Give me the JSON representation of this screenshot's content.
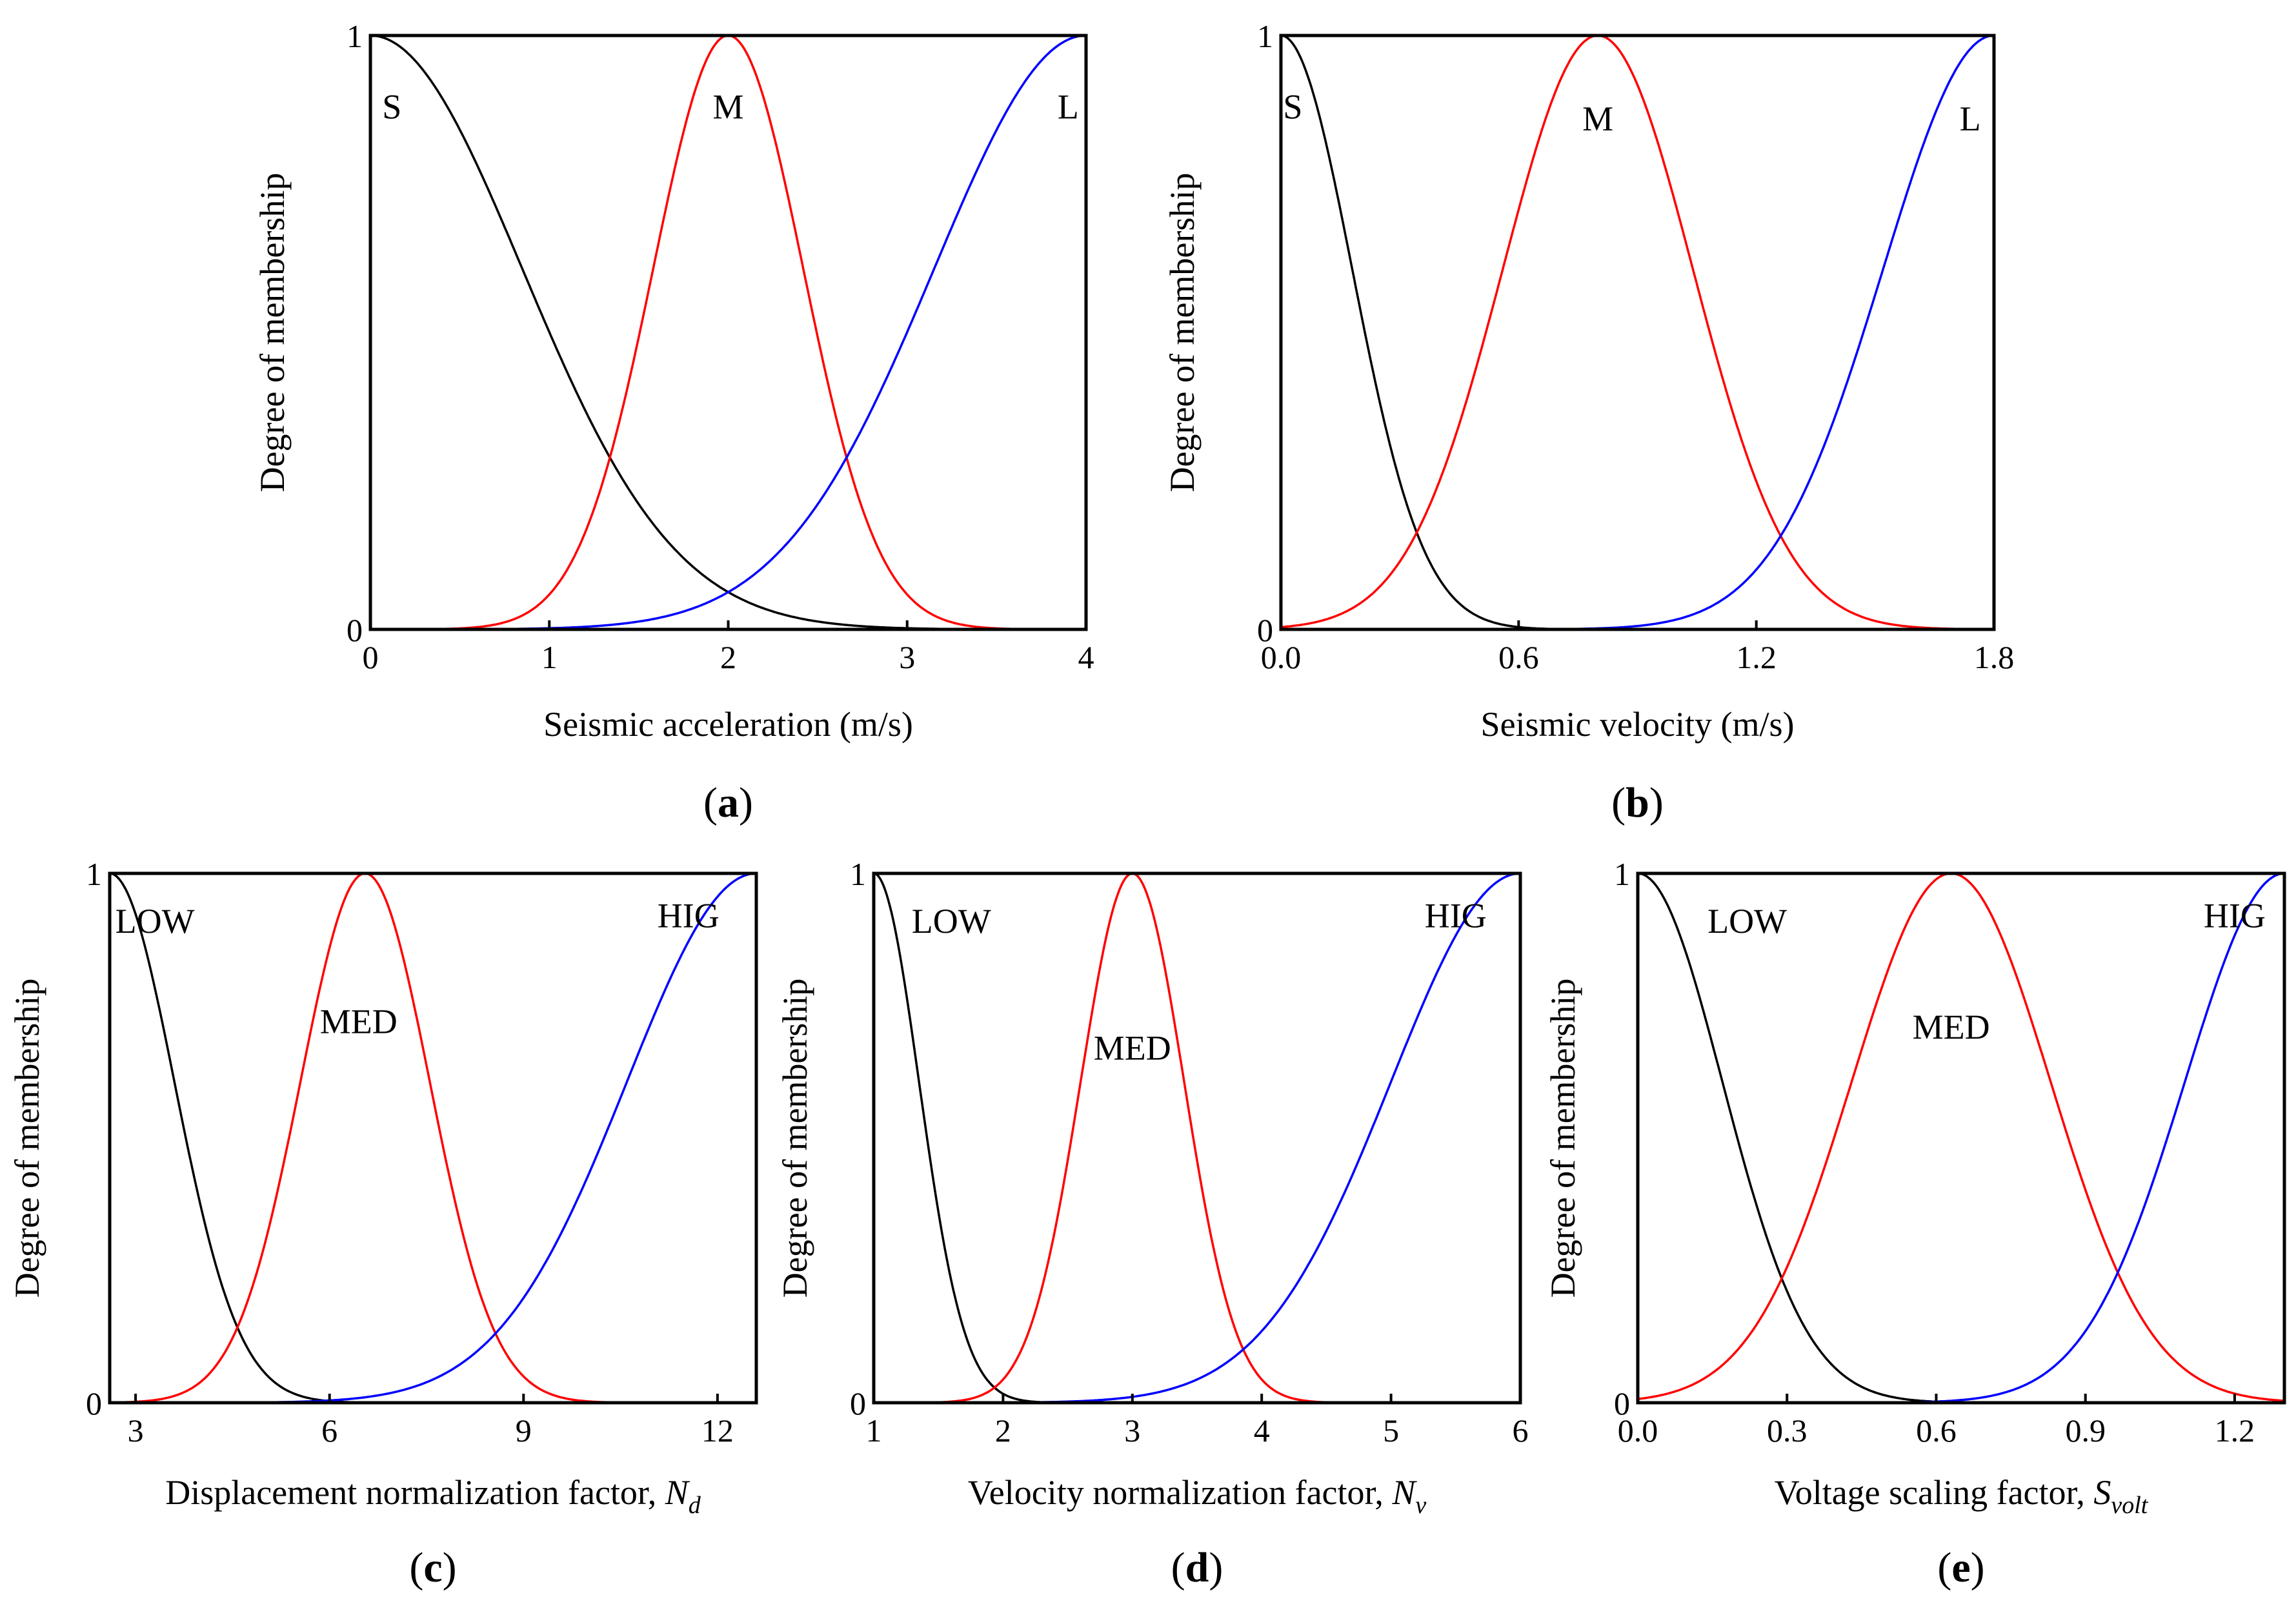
{
  "chart_data": [
    {
      "type": "line",
      "id": "a",
      "panel_label": "a",
      "xlabel": "Seismic acceleration (m/s)",
      "xlabel_symbol": "",
      "xlabel_subscript": "",
      "ylabel": "Degree of membership",
      "xlim": [
        0,
        4
      ],
      "ylim": [
        0,
        1
      ],
      "xticks": [
        0,
        1,
        2,
        3,
        4
      ],
      "xtick_labels": [
        "0",
        "1",
        "2",
        "3",
        "4"
      ],
      "yticks": [
        0,
        1
      ],
      "ytick_labels": [
        "0",
        "1"
      ],
      "series": [
        {
          "name": "S",
          "color": "#000000",
          "shape": "z",
          "mean": 0,
          "sigma": 0.85
        },
        {
          "name": "M",
          "color": "#ff0000",
          "shape": "gauss",
          "mean": 2,
          "sigma": 0.42
        },
        {
          "name": "L",
          "color": "#0000ff",
          "shape": "s",
          "mean": 4,
          "sigma": 0.85
        }
      ],
      "curve_labels": [
        {
          "text": "S",
          "x": 0.12,
          "y": 0.88
        },
        {
          "text": "M",
          "x": 2.0,
          "y": 0.88
        },
        {
          "text": "L",
          "x": 3.9,
          "y": 0.88
        }
      ]
    },
    {
      "type": "line",
      "id": "b",
      "panel_label": "b",
      "xlabel": "Seismic velocity (m/s)",
      "xlabel_symbol": "",
      "xlabel_subscript": "",
      "ylabel": "Degree of membership",
      "xlim": [
        0,
        1.8
      ],
      "ylim": [
        0,
        1
      ],
      "xticks": [
        0,
        0.6,
        1.2,
        1.8
      ],
      "xtick_labels": [
        "0.0",
        "0.6",
        "1.2",
        "1.8"
      ],
      "yticks": [
        0,
        1
      ],
      "ytick_labels": [
        "0",
        "1"
      ],
      "series": [
        {
          "name": "S",
          "color": "#000000",
          "shape": "z",
          "mean": 0,
          "sigma": 0.18
        },
        {
          "name": "M",
          "color": "#ff0000",
          "shape": "gauss",
          "mean": 0.8,
          "sigma": 0.24
        },
        {
          "name": "L",
          "color": "#0000ff",
          "shape": "s",
          "mean": 1.8,
          "sigma": 0.28
        }
      ],
      "curve_labels": [
        {
          "text": "S",
          "x": 0.03,
          "y": 0.88
        },
        {
          "text": "M",
          "x": 0.8,
          "y": 0.86
        },
        {
          "text": "L",
          "x": 1.74,
          "y": 0.86
        }
      ]
    },
    {
      "type": "line",
      "id": "c",
      "panel_label": "c",
      "xlabel": "Displacement normalization factor, ",
      "xlabel_symbol": "N",
      "xlabel_subscript": "d",
      "ylabel": "Degree of membership",
      "xlim": [
        2.6,
        12.6
      ],
      "ylim": [
        0,
        1
      ],
      "xticks": [
        3,
        6,
        9,
        12
      ],
      "xtick_labels": [
        "3",
        "6",
        "9",
        "12"
      ],
      "yticks": [
        0,
        1
      ],
      "ytick_labels": [
        "0",
        "1"
      ],
      "series": [
        {
          "name": "LOW",
          "color": "#000000",
          "shape": "z",
          "mean": 2.6,
          "sigma": 1.0
        },
        {
          "name": "MED",
          "color": "#ff0000",
          "shape": "gauss",
          "mean": 6.55,
          "sigma": 1.0
        },
        {
          "name": "HIG",
          "color": "#0000ff",
          "shape": "s",
          "mean": 12.6,
          "sigma": 2.0
        }
      ],
      "curve_labels": [
        {
          "text": "LOW",
          "x": 3.3,
          "y": 0.91
        },
        {
          "text": "MED",
          "x": 6.45,
          "y": 0.72
        },
        {
          "text": "HIG",
          "x": 11.55,
          "y": 0.92
        }
      ]
    },
    {
      "type": "line",
      "id": "d",
      "panel_label": "d",
      "xlabel": "Velocity normalization factor, ",
      "xlabel_symbol": "N",
      "xlabel_subscript": "v",
      "ylabel": "Degree of membership",
      "xlim": [
        1,
        6
      ],
      "ylim": [
        0,
        1
      ],
      "xticks": [
        1,
        2,
        3,
        4,
        5,
        6
      ],
      "xtick_labels": [
        "1",
        "2",
        "3",
        "4",
        "5",
        "6"
      ],
      "yticks": [
        0,
        1
      ],
      "ytick_labels": [
        "0",
        "1"
      ],
      "series": [
        {
          "name": "LOW",
          "color": "#000000",
          "shape": "z",
          "mean": 1.0,
          "sigma": 0.35
        },
        {
          "name": "MED",
          "color": "#ff0000",
          "shape": "gauss",
          "mean": 3.0,
          "sigma": 0.4
        },
        {
          "name": "HIG",
          "color": "#0000ff",
          "shape": "s",
          "mean": 6.0,
          "sigma": 1.0
        }
      ],
      "curve_labels": [
        {
          "text": "LOW",
          "x": 1.6,
          "y": 0.91
        },
        {
          "text": "MED",
          "x": 3.0,
          "y": 0.67
        },
        {
          "text": "HIG",
          "x": 5.5,
          "y": 0.92
        }
      ]
    },
    {
      "type": "line",
      "id": "e",
      "panel_label": "e",
      "xlabel": "Voltage  scaling factor, ",
      "xlabel_symbol": "S",
      "xlabel_subscript": "volt",
      "ylabel": "Degree of membership",
      "xlim": [
        0,
        1.3
      ],
      "ylim": [
        0,
        1
      ],
      "xticks": [
        0,
        0.3,
        0.6,
        0.9,
        1.2
      ],
      "xtick_labels": [
        "0.0",
        "0.3",
        "0.6",
        "0.9",
        "1.2"
      ],
      "yticks": [
        0,
        1
      ],
      "ytick_labels": [
        "0",
        "1"
      ],
      "series": [
        {
          "name": "LOW",
          "color": "#000000",
          "shape": "z",
          "mean": 0,
          "sigma": 0.17
        },
        {
          "name": "MED",
          "color": "#ff0000",
          "shape": "gauss",
          "mean": 0.63,
          "sigma": 0.2
        },
        {
          "name": "HIG",
          "color": "#0000ff",
          "shape": "s",
          "mean": 1.3,
          "sigma": 0.2
        }
      ],
      "curve_labels": [
        {
          "text": "LOW",
          "x": 0.22,
          "y": 0.91
        },
        {
          "text": "MED",
          "x": 0.63,
          "y": 0.71
        },
        {
          "text": "HIG",
          "x": 1.2,
          "y": 0.92
        }
      ]
    }
  ]
}
